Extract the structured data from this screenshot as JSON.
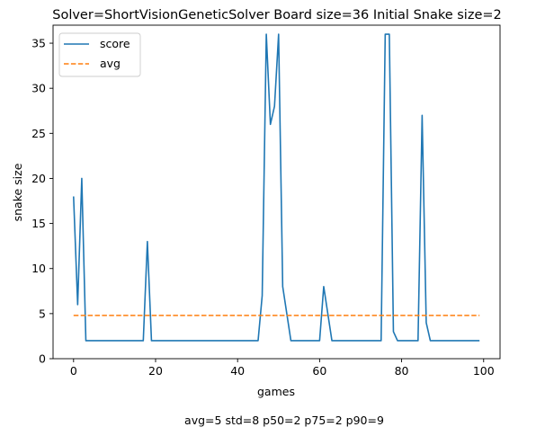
{
  "chart_data": {
    "type": "line",
    "title": "Solver=ShortVisionGeneticSolver   Board size=36   Initial Snake size=2",
    "xlabel": "games",
    "ylabel": "snake size",
    "xlim": [
      -5,
      104
    ],
    "ylim": [
      0,
      37
    ],
    "xticks": [
      0,
      20,
      40,
      60,
      80,
      100
    ],
    "yticks": [
      0,
      5,
      10,
      15,
      20,
      25,
      30,
      35
    ],
    "grid": false,
    "legend_position": "top-left",
    "series": [
      {
        "name": "score",
        "color": "#1f77b4",
        "style": "solid",
        "x": [
          0,
          1,
          2,
          3,
          4,
          5,
          6,
          7,
          8,
          9,
          10,
          11,
          12,
          13,
          14,
          15,
          16,
          17,
          18,
          19,
          20,
          21,
          22,
          23,
          24,
          25,
          26,
          27,
          28,
          29,
          30,
          31,
          32,
          33,
          34,
          35,
          36,
          37,
          38,
          39,
          40,
          41,
          42,
          43,
          44,
          45,
          46,
          47,
          48,
          49,
          50,
          51,
          52,
          53,
          54,
          55,
          56,
          57,
          58,
          59,
          60,
          61,
          62,
          63,
          64,
          65,
          66,
          67,
          68,
          69,
          70,
          71,
          72,
          73,
          74,
          75,
          76,
          77,
          78,
          79,
          80,
          81,
          82,
          83,
          84,
          85,
          86,
          87,
          88,
          89,
          90,
          91,
          92,
          93,
          94,
          95,
          96,
          97,
          98,
          99
        ],
        "values": [
          18,
          6,
          20,
          2,
          2,
          2,
          2,
          2,
          2,
          2,
          2,
          2,
          2,
          2,
          2,
          2,
          2,
          2,
          13,
          2,
          2,
          2,
          2,
          2,
          2,
          2,
          2,
          2,
          2,
          2,
          2,
          2,
          2,
          2,
          2,
          2,
          2,
          2,
          2,
          2,
          2,
          2,
          2,
          2,
          2,
          2,
          7,
          36,
          26,
          28,
          36,
          8,
          5,
          2,
          2,
          2,
          2,
          2,
          2,
          2,
          2,
          8,
          5,
          2,
          2,
          2,
          2,
          2,
          2,
          2,
          2,
          2,
          2,
          2,
          2,
          2,
          36,
          36,
          3,
          2,
          2,
          2,
          2,
          2,
          2,
          27,
          4,
          2,
          2,
          2,
          2,
          2,
          2,
          2,
          2,
          2,
          2,
          2,
          2,
          2
        ]
      },
      {
        "name": "avg",
        "color": "#ff7f0e",
        "style": "dashed",
        "x": [
          0,
          99
        ],
        "values": [
          4.8,
          4.8
        ]
      }
    ],
    "footer": "avg=5   std=8   p50=2   p75=2   p90=9"
  }
}
